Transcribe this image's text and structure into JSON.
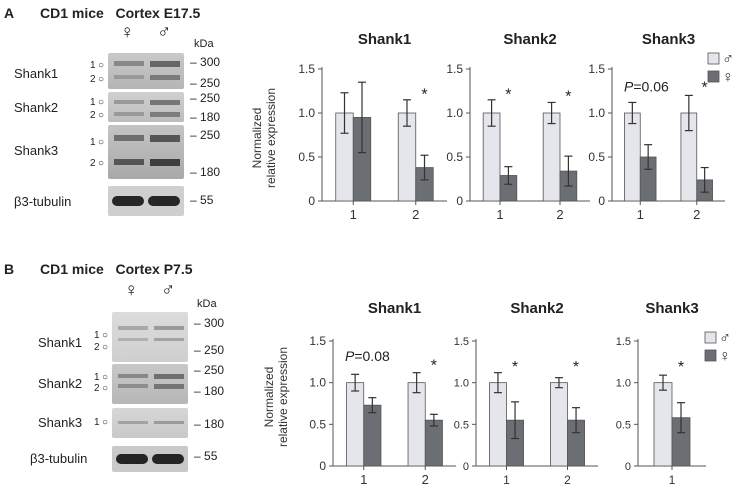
{
  "panels": [
    {
      "label": "A",
      "title": "CD1 mice   Cortex E17.5",
      "female_symbol": "♀",
      "male_symbol": "♂",
      "kda_label": "kDa",
      "blot_rows": [
        {
          "name": "Shank1",
          "bands": [
            "1",
            "2"
          ],
          "mw": [
            "300",
            "250"
          ]
        },
        {
          "name": "Shank2",
          "bands": [
            "1",
            "2"
          ],
          "mw": [
            "250",
            "180"
          ]
        },
        {
          "name": "Shank3",
          "bands": [
            "1",
            "2"
          ],
          "mw": [
            "250",
            "180"
          ]
        },
        {
          "name": "β3-tubulin",
          "bands": [],
          "mw": [
            "55"
          ]
        }
      ]
    },
    {
      "label": "B",
      "title": "CD1 mice   Cortex P7.5",
      "female_symbol": "♀",
      "male_symbol": "♂",
      "kda_label": "kDa",
      "blot_rows": [
        {
          "name": "Shank1",
          "bands": [
            "1",
            "2"
          ],
          "mw": [
            "300",
            "250"
          ]
        },
        {
          "name": "Shank2",
          "bands": [
            "1",
            "2"
          ],
          "mw": [
            "250",
            "180"
          ]
        },
        {
          "name": "Shank3",
          "bands": [
            "1"
          ],
          "mw": [
            "180"
          ]
        },
        {
          "name": "β3-tubulin",
          "bands": [],
          "mw": [
            "55"
          ]
        }
      ]
    }
  ],
  "colors": {
    "male": "#e4e6eb",
    "female": "#6b6e72",
    "axis": "#555555"
  },
  "chart_data": [
    {
      "panel": "A",
      "type": "bar",
      "title": "Shank1",
      "ylabel": "Normalized relative expression",
      "ylim": [
        0,
        1.5
      ],
      "yticks": [
        "0",
        "0.5",
        "1.0",
        "1.5"
      ],
      "categories": [
        "1",
        "2"
      ],
      "series": [
        {
          "name": "♂",
          "values": [
            1.0,
            1.0
          ],
          "errors": [
            0.23,
            0.15
          ]
        },
        {
          "name": "♀",
          "values": [
            0.95,
            0.38
          ],
          "errors": [
            0.4,
            0.14
          ]
        }
      ],
      "annotations": [
        {
          "text": "*",
          "category": 1,
          "y": 1.22
        }
      ]
    },
    {
      "panel": "A",
      "type": "bar",
      "title": "Shank2",
      "ylim": [
        0,
        1.5
      ],
      "yticks": [
        "0",
        "0.5",
        "1.0",
        "1.5"
      ],
      "categories": [
        "1",
        "2"
      ],
      "series": [
        {
          "name": "♂",
          "values": [
            1.0,
            1.0
          ],
          "errors": [
            0.15,
            0.12
          ]
        },
        {
          "name": "♀",
          "values": [
            0.29,
            0.34
          ],
          "errors": [
            0.1,
            0.17
          ]
        }
      ],
      "annotations": [
        {
          "text": "*",
          "category": 0,
          "y": 1.22
        },
        {
          "text": "*",
          "category": 1,
          "y": 1.2
        }
      ]
    },
    {
      "panel": "A",
      "type": "bar",
      "title": "Shank3",
      "ylim": [
        0,
        1.5
      ],
      "yticks": [
        "0",
        "0.5",
        "1.0",
        "1.5"
      ],
      "categories": [
        "1",
        "2"
      ],
      "series": [
        {
          "name": "♂",
          "values": [
            1.0,
            1.0
          ],
          "errors": [
            0.12,
            0.2
          ]
        },
        {
          "name": "♀",
          "values": [
            0.5,
            0.24
          ],
          "errors": [
            0.14,
            0.14
          ]
        }
      ],
      "annotations": [
        {
          "text": "P=0.06",
          "category": 0,
          "y": 1.3
        },
        {
          "text": "*",
          "category": 1,
          "y": 1.3
        }
      ],
      "legend": [
        "♂",
        "♀"
      ]
    },
    {
      "panel": "B",
      "type": "bar",
      "title": "Shank1",
      "ylabel": "Normalized relative expression",
      "ylim": [
        0,
        1.5
      ],
      "yticks": [
        "0",
        "0.5",
        "1.0",
        "1.5"
      ],
      "categories": [
        "1",
        "2"
      ],
      "series": [
        {
          "name": "♂",
          "values": [
            1.0,
            1.0
          ],
          "errors": [
            0.1,
            0.12
          ]
        },
        {
          "name": "♀",
          "values": [
            0.73,
            0.55
          ],
          "errors": [
            0.09,
            0.07
          ]
        }
      ],
      "annotations": [
        {
          "text": "P=0.08",
          "category": 0,
          "y": 1.32
        },
        {
          "text": "*",
          "category": 1,
          "y": 1.22
        }
      ]
    },
    {
      "panel": "B",
      "type": "bar",
      "title": "Shank2",
      "ylim": [
        0,
        1.5
      ],
      "yticks": [
        "0",
        "0.5",
        "1.0",
        "1.5"
      ],
      "categories": [
        "1",
        "2"
      ],
      "series": [
        {
          "name": "♂",
          "values": [
            1.0,
            1.0
          ],
          "errors": [
            0.12,
            0.06
          ]
        },
        {
          "name": "♀",
          "values": [
            0.55,
            0.55
          ],
          "errors": [
            0.22,
            0.15
          ]
        }
      ],
      "annotations": [
        {
          "text": "*",
          "category": 0,
          "y": 1.2
        },
        {
          "text": "*",
          "category": 1,
          "y": 1.2
        }
      ]
    },
    {
      "panel": "B",
      "type": "bar",
      "title": "Shank3",
      "ylim": [
        0,
        1.5
      ],
      "yticks": [
        "0",
        "0.5",
        "1.0",
        "1.5"
      ],
      "categories": [
        "1"
      ],
      "series": [
        {
          "name": "♂",
          "values": [
            1.0
          ],
          "errors": [
            0.09
          ]
        },
        {
          "name": "♀",
          "values": [
            0.58
          ],
          "errors": [
            0.18
          ]
        }
      ],
      "annotations": [
        {
          "text": "*",
          "category": 0,
          "y": 1.2
        }
      ],
      "legend": [
        "♂",
        "♀"
      ]
    }
  ]
}
